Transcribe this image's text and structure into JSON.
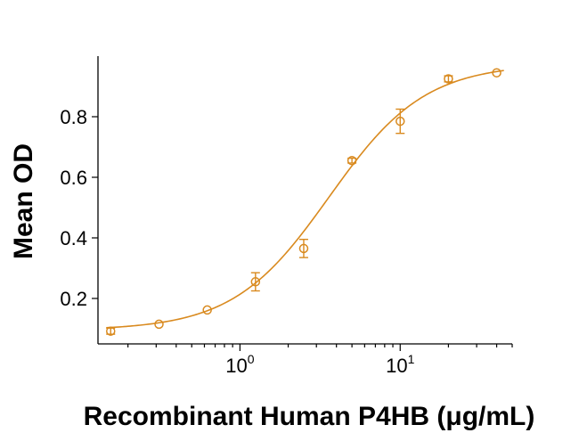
{
  "chart_data": {
    "type": "scatter",
    "xlabel": "Recombinant Human P4HB (μg/mL)",
    "ylabel": "Mean OD",
    "x_scale": "log",
    "xlim": [
      0.13,
      50
    ],
    "ylim": [
      0.05,
      1.0
    ],
    "yticks": [
      0.2,
      0.4,
      0.6,
      0.8
    ],
    "ytick_labels": [
      "0.2",
      "0.4",
      "0.6",
      "0.8"
    ],
    "xticks": [
      {
        "value": 1,
        "base": "10",
        "exp": "0"
      },
      {
        "value": 10,
        "base": "10",
        "exp": "1"
      }
    ],
    "color": "#d98a1f",
    "grid": false,
    "series": [
      {
        "points": [
          {
            "x": 0.156,
            "y": 0.092,
            "err": 0.01
          },
          {
            "x": 0.3125,
            "y": 0.115,
            "err": 0.0
          },
          {
            "x": 0.625,
            "y": 0.162,
            "err": 0.0
          },
          {
            "x": 1.25,
            "y": 0.255,
            "err": 0.03
          },
          {
            "x": 2.5,
            "y": 0.365,
            "err": 0.03
          },
          {
            "x": 5.0,
            "y": 0.655,
            "err": 0.008
          },
          {
            "x": 10.0,
            "y": 0.785,
            "err": 0.04
          },
          {
            "x": 20.0,
            "y": 0.925,
            "err": 0.01
          },
          {
            "x": 40.0,
            "y": 0.945,
            "err": 0.0
          }
        ]
      }
    ],
    "fit": {
      "bottom": 0.095,
      "top": 0.975,
      "ec50": 3.6,
      "hill": 1.45
    }
  }
}
